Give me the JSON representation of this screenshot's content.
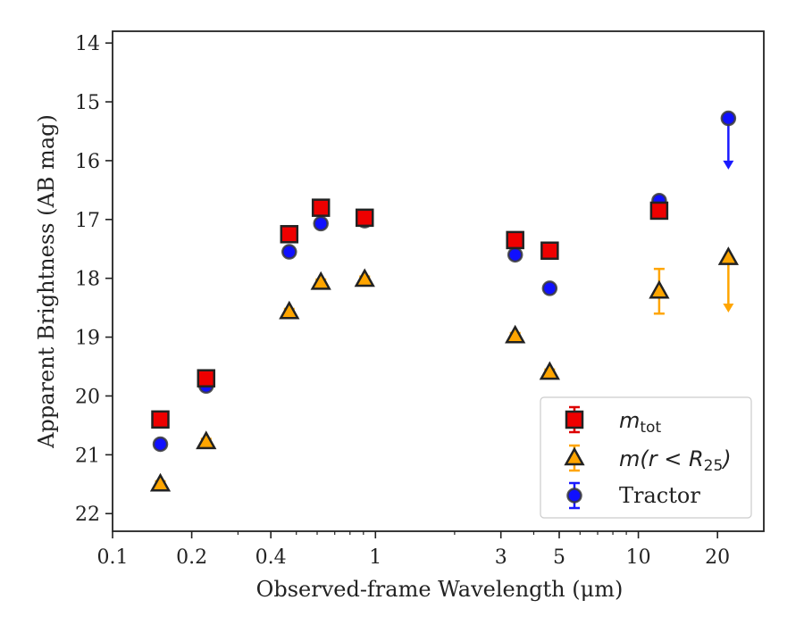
{
  "chart_data": {
    "type": "scatter",
    "xlabel": "Observed-frame Wavelength (μm)",
    "ylabel": "Apparent Brightness (AB mag)",
    "xscale": "log",
    "xlim": [
      0.1,
      30
    ],
    "ylim": [
      22.3,
      13.8
    ],
    "y_inverted": true,
    "x_tick_labels": [
      "0.1",
      "0.2",
      "0.4",
      "1",
      "3",
      "5",
      "10",
      "20"
    ],
    "x_tick_values": [
      0.1,
      0.2,
      0.4,
      1,
      3,
      5,
      10,
      20
    ],
    "y_tick_values": [
      14,
      15,
      16,
      17,
      18,
      19,
      20,
      21,
      22
    ],
    "y_tick_labels": [
      "14",
      "15",
      "16",
      "17",
      "18",
      "19",
      "20",
      "21",
      "22"
    ],
    "legend_position": "lower-right",
    "legend": {
      "mtot": {
        "main": "m",
        "sub": "tot"
      },
      "mr25": {
        "prefix": "m(r < R",
        "sub": "25",
        "suffix": ")"
      },
      "tractor": "Tractor"
    },
    "series": [
      {
        "key": "mtot",
        "marker": "square",
        "color": "#ee0000",
        "ecolor": "#dd0000",
        "points": [
          {
            "x": 0.152,
            "y": 20.4,
            "err": 0.1
          },
          {
            "x": 0.227,
            "y": 19.7,
            "err": 0.08
          },
          {
            "x": 0.47,
            "y": 17.25,
            "err": 0.05
          },
          {
            "x": 0.62,
            "y": 16.8,
            "err": 0.05
          },
          {
            "x": 0.91,
            "y": 16.97,
            "err": 0.05
          },
          {
            "x": 3.4,
            "y": 17.35,
            "err": 0.05
          },
          {
            "x": 4.6,
            "y": 17.53,
            "err": 0.05
          },
          {
            "x": 12.0,
            "y": 16.85,
            "err": 0.08
          }
        ]
      },
      {
        "key": "mr25",
        "marker": "triangle",
        "color": "#ffa500",
        "ecolor": "#ffa500",
        "points": [
          {
            "x": 0.152,
            "y": 21.5,
            "err": 0.05
          },
          {
            "x": 0.227,
            "y": 20.78,
            "err": 0.05
          },
          {
            "x": 0.47,
            "y": 18.57,
            "err": 0.05
          },
          {
            "x": 0.62,
            "y": 18.07,
            "err": 0.05
          },
          {
            "x": 0.91,
            "y": 18.02,
            "err": 0.05
          },
          {
            "x": 3.4,
            "y": 18.98,
            "err": 0.05
          },
          {
            "x": 4.6,
            "y": 19.6,
            "err": 0.05
          },
          {
            "x": 12.0,
            "y": 18.22,
            "err": 0.38
          },
          {
            "x": 22.0,
            "y": 17.65,
            "upper_limit_to": 18.55
          }
        ]
      },
      {
        "key": "tractor",
        "marker": "circle",
        "color": "#1010ff",
        "ecolor": "#1a1aff",
        "points": [
          {
            "x": 0.152,
            "y": 20.82,
            "err": 0.05
          },
          {
            "x": 0.227,
            "y": 19.83,
            "err": 0.05
          },
          {
            "x": 0.47,
            "y": 17.55,
            "err": 0.05
          },
          {
            "x": 0.62,
            "y": 17.07,
            "err": 0.05
          },
          {
            "x": 0.91,
            "y": 17.02,
            "err": 0.05
          },
          {
            "x": 3.4,
            "y": 17.6,
            "err": 0.05
          },
          {
            "x": 4.6,
            "y": 18.17,
            "err": 0.05
          },
          {
            "x": 12.0,
            "y": 16.68,
            "err": 0.05
          },
          {
            "x": 22.0,
            "y": 15.28,
            "upper_limit_to": 16.12
          }
        ]
      }
    ]
  }
}
